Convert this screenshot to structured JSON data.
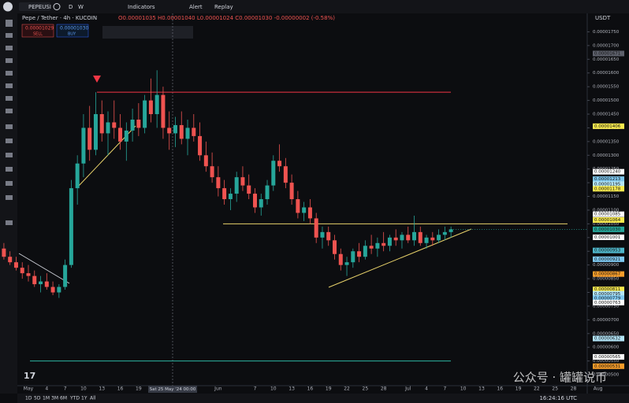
{
  "ui": {
    "symbol": "PEPEUSI",
    "timeframes": [
      "D",
      "W"
    ],
    "indicators": "Indicators",
    "alert": "Alert",
    "replay": "Replay",
    "legend": "Pepe / Tether · 4h · KUCOIN",
    "ohlc": "O0.00001035 H0.00001040 L0.00001024 C0.00001030 -0.00000002 (-0.58%)",
    "sell_price": "0.00001029",
    "sell": "SELL",
    "buy_price": "0.00001030",
    "buy": "BUY",
    "currency": "USDT",
    "ranges": [
      "1D",
      "5D",
      "1M",
      "3M",
      "6M",
      "YTD",
      "1Y",
      "All"
    ],
    "clock": "16:24:16 UTC",
    "watermark": "公众号 · 罐罐说币",
    "crosshair_label": "Sat 25 May '24 00:00"
  },
  "chart_data": {
    "type": "candlestick",
    "categories": [
      null,
      null,
      null,
      null,
      "May",
      null,
      null,
      "4",
      null,
      null,
      "7",
      null,
      null,
      "10",
      null,
      null,
      "13",
      null,
      null,
      "16",
      null,
      null,
      "19",
      null,
      null,
      null,
      null,
      null,
      null,
      null,
      null,
      null,
      null,
      null,
      null,
      "Jun",
      null,
      null,
      null,
      null,
      null,
      "7",
      null,
      null,
      "10",
      null,
      null,
      "13",
      null,
      null,
      "16",
      null,
      null,
      "19",
      null,
      null,
      "22",
      null,
      null,
      "25",
      null,
      null,
      "28",
      null,
      null,
      null,
      "Jul",
      null,
      null,
      "4",
      null,
      null,
      "7",
      null,
      null,
      "10",
      null,
      null,
      "13",
      null,
      null,
      "16",
      null,
      null,
      "19",
      null,
      null,
      "22",
      null,
      null,
      "25",
      null,
      null,
      "28",
      null,
      null,
      null,
      "Aug"
    ],
    "candles": [
      [
        9.6e-06,
        9.8e-06,
        9.2e-06,
        9.3e-06
      ],
      [
        9.3e-06,
        9.5e-06,
        9e-06,
        9.1e-06
      ],
      [
        9.1e-06,
        9.3e-06,
        8.8e-06,
        8.9e-06
      ],
      [
        8.9e-06,
        9.1e-06,
        8.5e-06,
        8.7e-06
      ],
      [
        8.7e-06,
        9e-06,
        8.4e-06,
        8.6e-06
      ],
      [
        8.6e-06,
        8.8e-06,
        8.2e-06,
        8.3e-06
      ],
      [
        8.3e-06,
        8.6e-06,
        8e-06,
        8.4e-06
      ],
      [
        8.4e-06,
        8.7e-06,
        8.1e-06,
        8.2e-06
      ],
      [
        8.2e-06,
        8.4e-06,
        7.9e-06,
        8e-06
      ],
      [
        8e-06,
        8.3e-06,
        7.8e-06,
        8.2e-06
      ],
      [
        8.2e-06,
        9.2e-06,
        8.1e-06,
        9e-06
      ],
      [
        9e-06,
        1.21e-05,
        8.9e-06,
        1.18e-05
      ],
      [
        1.18e-05,
        1.3e-05,
        1.12e-05,
        1.27e-05
      ],
      [
        1.27e-05,
        1.45e-05,
        1.22e-05,
        1.4e-05
      ],
      [
        1.4e-05,
        1.48e-05,
        1.28e-05,
        1.32e-05
      ],
      [
        1.32e-05,
        1.53e-05,
        1.3e-05,
        1.45e-05
      ],
      [
        1.45e-05,
        1.5e-05,
        1.35e-05,
        1.38e-05
      ],
      [
        1.38e-05,
        1.46e-05,
        1.3e-05,
        1.42e-05
      ],
      [
        1.42e-05,
        1.5e-05,
        1.36e-05,
        1.4e-05
      ],
      [
        1.4e-05,
        1.45e-05,
        1.32e-05,
        1.35e-05
      ],
      [
        1.35e-05,
        1.42e-05,
        1.28e-05,
        1.39e-05
      ],
      [
        1.39e-05,
        1.47e-05,
        1.35e-05,
        1.43e-05
      ],
      [
        1.43e-05,
        1.49e-05,
        1.37e-05,
        1.4e-05
      ],
      [
        1.4e-05,
        1.52e-05,
        1.38e-05,
        1.5e-05
      ],
      [
        1.5e-05,
        1.58e-05,
        1.42e-05,
        1.45e-05
      ],
      [
        1.45e-05,
        1.61e-05,
        1.4e-05,
        1.52e-05
      ],
      [
        1.52e-05,
        1.55e-05,
        1.36e-05,
        1.4e-05
      ],
      [
        1.4e-05,
        1.46e-05,
        1.32e-05,
        1.38e-05
      ],
      [
        1.38e-05,
        1.44e-05,
        1.33e-05,
        1.41e-05
      ],
      [
        1.41e-05,
        1.46e-05,
        1.34e-05,
        1.36e-05
      ],
      [
        1.36e-05,
        1.43e-05,
        1.3e-05,
        1.4e-05
      ],
      [
        1.4e-05,
        1.45e-05,
        1.35e-05,
        1.37e-05
      ],
      [
        1.37e-05,
        1.42e-05,
        1.28e-05,
        1.3e-05
      ],
      [
        1.3e-05,
        1.35e-05,
        1.24e-05,
        1.26e-05
      ],
      [
        1.26e-05,
        1.31e-05,
        1.2e-05,
        1.22e-05
      ],
      [
        1.22e-05,
        1.26e-05,
        1.15e-05,
        1.18e-05
      ],
      [
        1.18e-05,
        1.21e-05,
        1.12e-05,
        1.14e-05
      ],
      [
        1.14e-05,
        1.18e-05,
        1.1e-05,
        1.16e-05
      ],
      [
        1.16e-05,
        1.24e-05,
        1.13e-05,
        1.22e-05
      ],
      [
        1.22e-05,
        1.26e-05,
        1.17e-05,
        1.19e-05
      ],
      [
        1.19e-05,
        1.23e-05,
        1.14e-05,
        1.16e-05
      ],
      [
        1.16e-05,
        1.18e-05,
        1.09e-05,
        1.11e-05
      ],
      [
        1.11e-05,
        1.16e-05,
        1.08e-05,
        1.14e-05
      ],
      [
        1.14e-05,
        1.21e-05,
        1.12e-05,
        1.19e-05
      ],
      [
        1.19e-05,
        1.3e-05,
        1.17e-05,
        1.28e-05
      ],
      [
        1.28e-05,
        1.34e-05,
        1.24e-05,
        1.26e-05
      ],
      [
        1.26e-05,
        1.29e-05,
        1.18e-05,
        1.2e-05
      ],
      [
        1.2e-05,
        1.23e-05,
        1.12e-05,
        1.14e-05
      ],
      [
        1.14e-05,
        1.17e-05,
        1.07e-05,
        1.09e-05
      ],
      [
        1.09e-05,
        1.13e-05,
        1.06e-05,
        1.11e-05
      ],
      [
        1.11e-05,
        1.14e-05,
        1.05e-05,
        1.07e-05
      ],
      [
        1.07e-05,
        1.09e-05,
        9.8e-06,
        1e-05
      ],
      [
        1e-05,
        1.04e-05,
        9.6e-06,
        1.02e-05
      ],
      [
        1.02e-05,
        1.04e-05,
        9.7e-06,
        9.9e-06
      ],
      [
        9.9e-06,
        1.01e-05,
        9.2e-06,
        9.4e-06
      ],
      [
        9.4e-06,
        9.6e-06,
        8.8e-06,
        9e-06
      ],
      [
        9e-06,
        9.3e-06,
        8.6e-06,
        9.1e-06
      ],
      [
        9.1e-06,
        9.6e-06,
        8.9e-06,
        9.5e-06
      ],
      [
        9.5e-06,
        9.8e-06,
        9.1e-06,
        9.3e-06
      ],
      [
        9.3e-06,
        9.9e-06,
        9.2e-06,
        9.7e-06
      ],
      [
        9.7e-06,
        1.01e-05,
        9.4e-06,
        9.6e-06
      ],
      [
        9.6e-06,
        1e-05,
        9.3e-06,
        9.8e-06
      ],
      [
        9.8e-06,
        1.02e-05,
        9.5e-06,
        9.7e-06
      ],
      [
        9.7e-06,
        1.01e-05,
        9.5e-06,
        1e-05
      ],
      [
        1e-05,
        1.03e-05,
        9.7e-06,
        9.9e-06
      ],
      [
        9.9e-06,
        1.02e-05,
        9.6e-06,
        1.01e-05
      ],
      [
        1.01e-05,
        1.04e-05,
        9.8e-06,
        9.9e-06
      ],
      [
        9.9e-06,
        1.08e-05,
        9.7e-06,
        1.02e-05
      ],
      [
        1.02e-05,
        1.04e-05,
        9.7e-06,
        9.8e-06
      ],
      [
        9.8e-06,
        1.01e-05,
        9.6e-06,
        1e-05
      ],
      [
        1e-05,
        1.02e-05,
        9.7e-06,
        9.9e-06
      ],
      [
        9.9e-06,
        1.03e-05,
        9.8e-06,
        1.01e-05
      ],
      [
        1.01e-05,
        1.04e-05,
        9.9e-06,
        1.02e-05
      ],
      [
        1.02e-05,
        1.04e-05,
        1e-05,
        1.03e-05
      ],
      null,
      null,
      null,
      null,
      null,
      null,
      null,
      null,
      null,
      null,
      null,
      null,
      null,
      null,
      null,
      null,
      null,
      null,
      null,
      null,
      null,
      null,
      null
    ],
    "up_color": "#26a69a",
    "down_color": "#ef5350",
    "ylim": [
      4.6e-06,
      1.78e-05
    ],
    "yticks": [
      {
        "value": 5e-06,
        "label": "0.00000500"
      },
      {
        "value": 5.5e-06,
        "label": "0.00000550"
      },
      {
        "value": 6e-06,
        "label": "0.00000600"
      },
      {
        "value": 6.5e-06,
        "label": "0.00000650"
      },
      {
        "value": 7e-06,
        "label": "0.00000700"
      },
      {
        "value": 7.5e-06,
        "label": "0.00000750"
      },
      {
        "value": 8e-06,
        "label": "0.00000800"
      },
      {
        "value": 8.5e-06,
        "label": "0.00000850"
      },
      {
        "value": 9e-06,
        "label": "0.00000900"
      },
      {
        "value": 9.5e-06,
        "label": "0.00000950"
      },
      {
        "value": 1e-05,
        "label": "0.00001000"
      },
      {
        "value": 1.05e-05,
        "label": "0.00001050"
      },
      {
        "value": 1.1e-05,
        "label": "0.00001100"
      },
      {
        "value": 1.15e-05,
        "label": "0.00001150"
      },
      {
        "value": 1.2e-05,
        "label": "0.00001200"
      },
      {
        "value": 1.25e-05,
        "label": "0.00001250"
      },
      {
        "value": 1.3e-05,
        "label": "0.00001300"
      },
      {
        "value": 1.35e-05,
        "label": "0.00001350"
      },
      {
        "value": 1.4e-05,
        "label": "0.00001400"
      },
      {
        "value": 1.45e-05,
        "label": "0.00001450"
      },
      {
        "value": 1.5e-05,
        "label": "0.00001500"
      },
      {
        "value": 1.55e-05,
        "label": "0.00001550"
      },
      {
        "value": 1.6e-05,
        "label": "0.00001600"
      },
      {
        "value": 1.65e-05,
        "label": "0.00001650"
      },
      {
        "value": 1.7e-05,
        "label": "0.00001700"
      },
      {
        "value": 1.75e-05,
        "label": "0.00001750"
      }
    ],
    "grid": false,
    "levels": [
      {
        "value": 1.53e-05,
        "color": "#f23645"
      },
      {
        "value": 1.05e-05,
        "color": "#e8d26a"
      },
      {
        "value": 5.5e-06,
        "color": "#2bb3a0"
      }
    ],
    "price_tags": [
      {
        "value": 1.671e-05,
        "label": "0.00001671",
        "color": "#5d606b"
      },
      {
        "value": 1.406e-05,
        "label": "0.00001406",
        "color": "#f7e94e"
      },
      {
        "value": 1.24e-05,
        "label": "0.00001240",
        "color": "#ffffff"
      },
      {
        "value": 1.213e-05,
        "label": "0.00001213",
        "color": "#7ec8f0"
      },
      {
        "value": 1.195e-05,
        "label": "0.00001195",
        "color": "#b2e4f7"
      },
      {
        "value": 1.178e-05,
        "label": "0.00001178",
        "color": "#f7e94e"
      },
      {
        "value": 1.085e-05,
        "label": "0.00001085",
        "color": "#ffffff"
      },
      {
        "value": 1.064e-05,
        "label": "0.00001064",
        "color": "#f7e94e"
      },
      {
        "value": 1.03e-05,
        "label": "0.00001030",
        "color": "#26a69a"
      },
      {
        "value": 1.001e-05,
        "label": "0.00001001",
        "color": "#ffffff"
      },
      {
        "value": 9.53e-06,
        "label": "0.00000953",
        "color": "#4fb5c9"
      },
      {
        "value": 9.21e-06,
        "label": "0.00000921",
        "color": "#7ec8f0"
      },
      {
        "value": 8.67e-06,
        "label": "0.00000867",
        "color": "#f59c2a"
      },
      {
        "value": 8.11e-06,
        "label": "0.00000811",
        "color": "#f7e94e"
      },
      {
        "value": 7.95e-06,
        "label": "0.00000795",
        "color": "#b2e4f7"
      },
      {
        "value": 7.79e-06,
        "label": "0.00000779",
        "color": "#7ec8f0"
      },
      {
        "value": 7.63e-06,
        "label": "0.00000763",
        "color": "#ffffff"
      },
      {
        "value": 6.32e-06,
        "label": "0.00000632",
        "color": "#b2e4f7"
      },
      {
        "value": 5.65e-06,
        "label": "0.00000565",
        "color": "#ffffff"
      },
      {
        "value": 5.31e-06,
        "label": "0.00000531",
        "color": "#f59c2a"
      }
    ]
  }
}
